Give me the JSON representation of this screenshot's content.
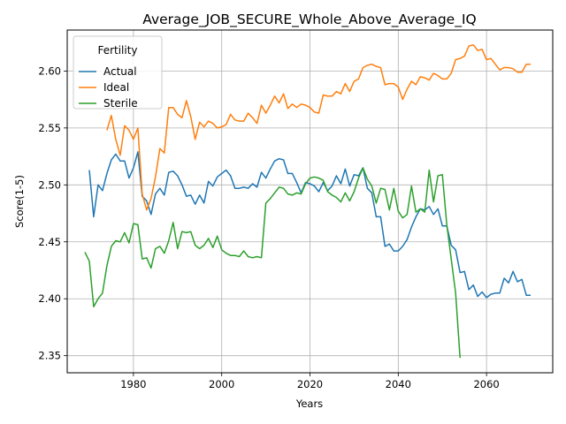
{
  "chart_data": {
    "type": "line",
    "title": "Average_JOB_SECURE_Whole_Above_Average_IQ",
    "xlabel": "Years",
    "ylabel": "Score(1-5)",
    "xlim": [
      1965,
      2075
    ],
    "ylim": [
      2.335,
      2.636
    ],
    "xticks": [
      1980,
      2000,
      2020,
      2040,
      2060
    ],
    "yticks": [
      2.35,
      2.4,
      2.45,
      2.5,
      2.55,
      2.6
    ],
    "xtick_labels": [
      "1980",
      "2000",
      "2020",
      "2040",
      "2060"
    ],
    "ytick_labels": [
      "2.35",
      "2.40",
      "2.45",
      "2.50",
      "2.55",
      "2.60"
    ],
    "grid": true,
    "legend": {
      "title": "Fertility",
      "placement": "top-left"
    },
    "series": [
      {
        "name": "Actual",
        "color": "#1f77b4",
        "x": [
          1970,
          1971,
          1972,
          1973,
          1974,
          1975,
          1976,
          1977,
          1978,
          1979,
          1980,
          1981,
          1982,
          1983,
          1984,
          1985,
          1986,
          1987,
          1988,
          1989,
          1990,
          1991,
          1992,
          1993,
          1994,
          1995,
          1996,
          1997,
          1998,
          1999,
          2000,
          2001,
          2002,
          2003,
          2004,
          2005,
          2006,
          2007,
          2008,
          2009,
          2010,
          2011,
          2012,
          2013,
          2014,
          2015,
          2016,
          2017,
          2018,
          2019,
          2020,
          2021,
          2022,
          2023,
          2024,
          2025,
          2026,
          2027,
          2028,
          2029,
          2030,
          2031,
          2032,
          2033,
          2034,
          2035,
          2036,
          2037,
          2038,
          2039,
          2040,
          2041,
          2042,
          2043,
          2044,
          2045,
          2046,
          2047,
          2048,
          2049,
          2050,
          2051,
          2052,
          2053,
          2054,
          2055,
          2056,
          2057,
          2058,
          2059,
          2060,
          2061,
          2062,
          2063,
          2064,
          2065,
          2066,
          2067,
          2068,
          2069,
          2070
        ],
        "values": [
          2.513,
          2.472,
          2.5,
          2.495,
          2.51,
          2.522,
          2.527,
          2.521,
          2.521,
          2.506,
          2.515,
          2.529,
          2.49,
          2.486,
          2.474,
          2.492,
          2.497,
          2.491,
          2.511,
          2.512,
          2.508,
          2.5,
          2.49,
          2.491,
          2.483,
          2.491,
          2.484,
          2.503,
          2.499,
          2.507,
          2.51,
          2.513,
          2.508,
          2.497,
          2.497,
          2.498,
          2.497,
          2.501,
          2.498,
          2.511,
          2.506,
          2.514,
          2.521,
          2.523,
          2.522,
          2.51,
          2.51,
          2.502,
          2.493,
          2.502,
          2.501,
          2.499,
          2.494,
          2.502,
          2.495,
          2.499,
          2.508,
          2.501,
          2.514,
          2.499,
          2.509,
          2.508,
          2.515,
          2.497,
          2.493,
          2.472,
          2.472,
          2.446,
          2.448,
          2.442,
          2.442,
          2.446,
          2.452,
          2.463,
          2.472,
          2.479,
          2.478,
          2.481,
          2.474,
          2.479,
          2.464,
          2.464,
          2.447,
          2.443,
          2.423,
          2.424,
          2.408,
          2.412,
          2.402,
          2.406,
          2.401,
          2.404,
          2.405,
          2.405,
          2.418,
          2.414,
          2.424,
          2.415,
          2.417,
          2.403,
          2.403
        ]
      },
      {
        "name": "Ideal",
        "color": "#ff7f0e",
        "x": [
          1974,
          1975,
          1976,
          1977,
          1978,
          1979,
          1980,
          1981,
          1982,
          1983,
          1984,
          1985,
          1986,
          1987,
          1988,
          1989,
          1990,
          1991,
          1992,
          1993,
          1994,
          1995,
          1996,
          1997,
          1998,
          1999,
          2000,
          2001,
          2002,
          2003,
          2004,
          2005,
          2006,
          2007,
          2008,
          2009,
          2010,
          2011,
          2012,
          2013,
          2014,
          2015,
          2016,
          2017,
          2018,
          2019,
          2020,
          2021,
          2022,
          2023,
          2024,
          2025,
          2026,
          2027,
          2028,
          2029,
          2030,
          2031,
          2032,
          2033,
          2034,
          2035,
          2036,
          2037,
          2038,
          2039,
          2040,
          2041,
          2042,
          2043,
          2044,
          2045,
          2046,
          2047,
          2048,
          2049,
          2050,
          2051,
          2052,
          2053,
          2054,
          2055,
          2056,
          2057,
          2058,
          2059,
          2060,
          2061,
          2062,
          2063,
          2064,
          2065,
          2066,
          2067,
          2068,
          2069,
          2070
        ],
        "values": [
          2.548,
          2.561,
          2.54,
          2.526,
          2.552,
          2.548,
          2.54,
          2.55,
          2.492,
          2.478,
          2.488,
          2.507,
          2.532,
          2.528,
          2.568,
          2.568,
          2.562,
          2.559,
          2.574,
          2.56,
          2.54,
          2.555,
          2.551,
          2.556,
          2.554,
          2.55,
          2.551,
          2.553,
          2.562,
          2.557,
          2.556,
          2.556,
          2.563,
          2.559,
          2.554,
          2.57,
          2.563,
          2.57,
          2.578,
          2.572,
          2.58,
          2.567,
          2.571,
          2.568,
          2.571,
          2.57,
          2.568,
          2.564,
          2.563,
          2.579,
          2.578,
          2.578,
          2.582,
          2.58,
          2.589,
          2.582,
          2.591,
          2.593,
          2.603,
          2.605,
          2.606,
          2.604,
          2.603,
          2.588,
          2.589,
          2.589,
          2.586,
          2.575,
          2.584,
          2.591,
          2.588,
          2.595,
          2.594,
          2.592,
          2.598,
          2.596,
          2.593,
          2.593,
          2.598,
          2.61,
          2.611,
          2.613,
          2.622,
          2.623,
          2.618,
          2.619,
          2.61,
          2.611,
          2.606,
          2.601,
          2.603,
          2.603,
          2.602,
          2.599,
          2.599,
          2.606,
          2.606
        ]
      },
      {
        "name": "Sterile",
        "color": "#2ca02c",
        "x": [
          1969,
          1970,
          1971,
          1972,
          1973,
          1974,
          1975,
          1976,
          1977,
          1978,
          1979,
          1980,
          1981,
          1982,
          1983,
          1984,
          1985,
          1986,
          1987,
          1988,
          1989,
          1990,
          1991,
          1992,
          1993,
          1994,
          1995,
          1996,
          1997,
          1998,
          1999,
          2000,
          2001,
          2002,
          2003,
          2004,
          2005,
          2006,
          2007,
          2008,
          2009,
          2010,
          2011,
          2012,
          2013,
          2014,
          2015,
          2016,
          2017,
          2018,
          2019,
          2020,
          2021,
          2022,
          2023,
          2024,
          2025,
          2026,
          2027,
          2028,
          2029,
          2030,
          2031,
          2032,
          2033,
          2034,
          2035,
          2036,
          2037,
          2038,
          2039,
          2040,
          2041,
          2042,
          2043,
          2044,
          2045,
          2046,
          2047,
          2048,
          2049,
          2050,
          2051,
          2052,
          2053,
          2054
        ],
        "values": [
          2.441,
          2.433,
          2.393,
          2.4,
          2.405,
          2.429,
          2.446,
          2.451,
          2.45,
          2.458,
          2.449,
          2.466,
          2.465,
          2.435,
          2.436,
          2.427,
          2.444,
          2.446,
          2.44,
          2.451,
          2.467,
          2.444,
          2.459,
          2.458,
          2.459,
          2.447,
          2.444,
          2.447,
          2.453,
          2.445,
          2.455,
          2.443,
          2.44,
          2.438,
          2.438,
          2.437,
          2.442,
          2.437,
          2.436,
          2.437,
          2.436,
          2.484,
          2.488,
          2.493,
          2.498,
          2.497,
          2.492,
          2.491,
          2.493,
          2.492,
          2.501,
          2.506,
          2.507,
          2.506,
          2.504,
          2.494,
          2.491,
          2.489,
          2.485,
          2.493,
          2.486,
          2.494,
          2.506,
          2.515,
          2.505,
          2.499,
          2.484,
          2.497,
          2.496,
          2.478,
          2.497,
          2.477,
          2.471,
          2.474,
          2.499,
          2.476,
          2.479,
          2.476,
          2.513,
          2.485,
          2.508,
          2.509,
          2.465,
          2.435,
          2.405,
          2.348
        ]
      }
    ]
  }
}
